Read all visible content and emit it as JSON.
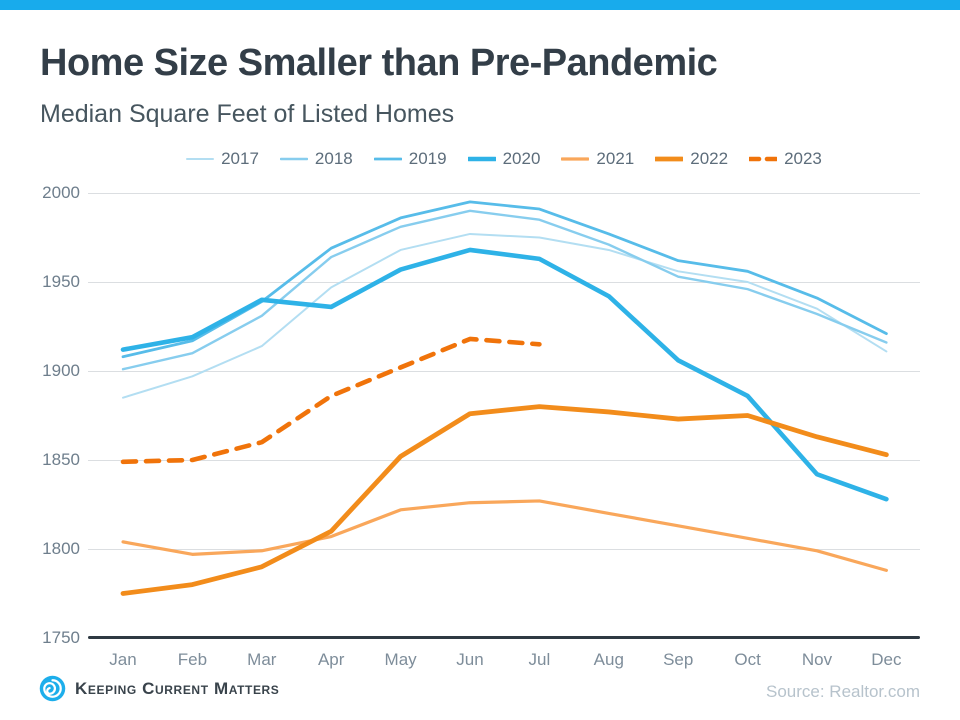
{
  "accent_bar_color": "#18abec",
  "chart_data": {
    "type": "line",
    "title": "Home Size Smaller than Pre-Pandemic",
    "subtitle": "Median Square Feet of Listed Homes",
    "categories": [
      "Jan",
      "Feb",
      "Mar",
      "Apr",
      "May",
      "Jun",
      "Jul",
      "Aug",
      "Sep",
      "Oct",
      "Nov",
      "Dec"
    ],
    "ylim": [
      1750,
      2000
    ],
    "yticks": [
      2000,
      1950,
      1900,
      1850,
      1800,
      1750
    ],
    "grid": true,
    "legend_position": "top",
    "series": [
      {
        "name": "2017",
        "color": "#b3def2",
        "width": 2,
        "dash": false,
        "values": [
          1885,
          1897,
          1914,
          1947,
          1968,
          1977,
          1975,
          1968,
          1956,
          1950,
          1935,
          1911
        ]
      },
      {
        "name": "2018",
        "color": "#87cdee",
        "width": 2.4,
        "dash": false,
        "values": [
          1901,
          1910,
          1931,
          1964,
          1981,
          1990,
          1985,
          1971,
          1953,
          1946,
          1932,
          1916
        ]
      },
      {
        "name": "2019",
        "color": "#57bce9",
        "width": 2.8,
        "dash": false,
        "values": [
          1908,
          1917,
          1939,
          1969,
          1986,
          1995,
          1991,
          1977,
          1962,
          1956,
          1941,
          1921
        ]
      },
      {
        "name": "2020",
        "color": "#2eb2e7",
        "width": 4.6,
        "dash": false,
        "values": [
          1912,
          1919,
          1940,
          1936,
          1957,
          1968,
          1963,
          1942,
          1906,
          1886,
          1842,
          1828
        ]
      },
      {
        "name": "2021",
        "color": "#f9a75b",
        "width": 3.2,
        "dash": false,
        "values": [
          1804,
          1797,
          1799,
          1807,
          1822,
          1826,
          1827,
          1820,
          1813,
          1806,
          1799,
          1788
        ]
      },
      {
        "name": "2022",
        "color": "#f28c1b",
        "width": 4.8,
        "dash": false,
        "values": [
          1775,
          1780,
          1790,
          1810,
          1852,
          1876,
          1880,
          1877,
          1873,
          1875,
          1863,
          1853
        ]
      },
      {
        "name": "2023",
        "color": "#f0730a",
        "width": 4.6,
        "dash": true,
        "values": [
          1849,
          1850,
          1860,
          1886,
          1902,
          1918,
          1915
        ]
      }
    ]
  },
  "footer": {
    "brand": "Keeping Current Matters",
    "source": "Source: Realtor.com"
  }
}
